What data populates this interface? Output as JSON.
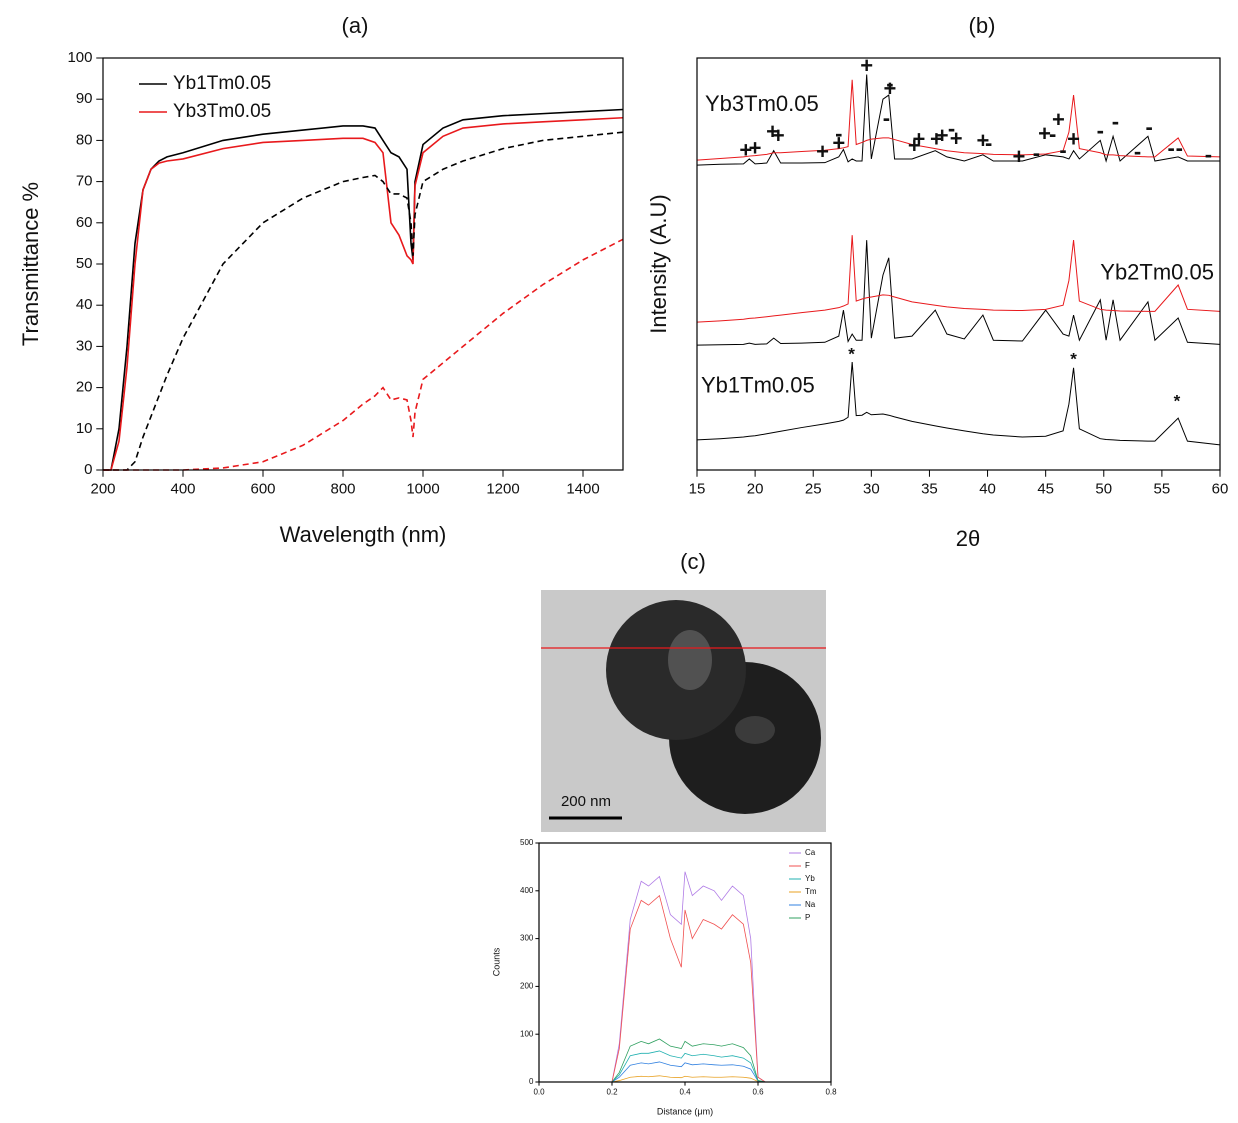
{
  "chart_data": [
    {
      "type": "line",
      "title": "(a)",
      "x_label": "Wavelength (nm)",
      "y_label": "Transmittance %",
      "x": [
        200,
        220,
        240,
        260,
        280,
        300,
        320,
        340,
        360,
        400,
        500,
        600,
        700,
        800,
        850,
        880,
        900,
        920,
        940,
        960,
        970,
        975,
        980,
        1000,
        1050,
        1100,
        1200,
        1300,
        1400,
        1500
      ],
      "xlim": [
        200,
        1500
      ],
      "xticks": [
        200,
        400,
        600,
        800,
        1000,
        1200,
        1400
      ],
      "ylim": [
        0,
        100
      ],
      "yticks": [
        0,
        10,
        20,
        30,
        40,
        50,
        60,
        70,
        80,
        90,
        100
      ],
      "legend": "upper left",
      "series": [
        {
          "name": "Yb1Tm0.05",
          "color": "#000000",
          "values": [
            0,
            0,
            10,
            30,
            55,
            68,
            73,
            75,
            76,
            77,
            80,
            81.5,
            82.5,
            83.5,
            83.5,
            83,
            80,
            77,
            76,
            73,
            55,
            51,
            70,
            79,
            83,
            85,
            86,
            86.5,
            87,
            87.5
          ]
        },
        {
          "name": "Yb3Tm0.05",
          "color": "#e8191c",
          "values": [
            0,
            0,
            7,
            25,
            50,
            68,
            73,
            74.5,
            75,
            75.5,
            78,
            79.5,
            80,
            80.5,
            80.5,
            79.5,
            77,
            60,
            57,
            52,
            51,
            50,
            69,
            77,
            81,
            83,
            84,
            84.5,
            85,
            85.5
          ]
        },
        {
          "color": "#000000",
          "dash": true,
          "values": [
            0,
            0,
            0,
            0,
            2,
            8,
            13,
            18,
            23,
            32,
            50,
            60,
            66,
            70,
            71,
            71.5,
            70,
            67,
            67,
            66,
            60,
            52,
            62,
            70,
            73,
            75,
            78,
            80,
            81,
            82
          ]
        },
        {
          "color": "#e8191c",
          "dash": true,
          "values": [
            0,
            0,
            0,
            0,
            0,
            0,
            0,
            0,
            0,
            0,
            0.5,
            2,
            6,
            12,
            16,
            18,
            20,
            17,
            17.5,
            17,
            12,
            8,
            14,
            22,
            26,
            30,
            38,
            45,
            51,
            56
          ]
        }
      ]
    },
    {
      "type": "line",
      "title": "(b)",
      "x_label": "2θ",
      "y_label": "Intensity (A.U)",
      "x": [
        15,
        17,
        19,
        19.5,
        20,
        21,
        21.6,
        22.2,
        24,
        26,
        27.2,
        27.6,
        28.0,
        28.35,
        28.7,
        29.2,
        29.6,
        30.0,
        31.0,
        31.5,
        32.0,
        33.5,
        35.5,
        36.5,
        38,
        39.6,
        40.5,
        43,
        45,
        46.5,
        47.0,
        47.4,
        47.9,
        49.7,
        50.2,
        50.8,
        51.4,
        53.8,
        54.4,
        56.4,
        57.2,
        60
      ],
      "xlim": [
        15,
        60
      ],
      "xticks": [
        15,
        20,
        25,
        30,
        35,
        40,
        45,
        50,
        55,
        60
      ],
      "ylim": [
        0,
        100
      ],
      "groups": [
        {
          "name": "Yb3Tm0.05",
          "series": [
            {
              "color": "#000000",
              "values": [
                74,
                74.2,
                74.3,
                75.5,
                74.3,
                74.5,
                77.5,
                74.5,
                74.5,
                74.6,
                76,
                77.8,
                74.8,
                75.5,
                75,
                75,
                96,
                75.5,
                90,
                91,
                75.5,
                75.5,
                77.5,
                76,
                75,
                76.5,
                75,
                75,
                76.5,
                76,
                75.5,
                77.5,
                75.5,
                80,
                75,
                81,
                75,
                81,
                75,
                76,
                75,
                75
              ]
            },
            {
              "color": "#e8191c",
              "values": [
                75.2,
                75.6,
                76,
                76.2,
                76.3,
                76.6,
                77,
                77,
                77.3,
                77.6,
                78,
                78.2,
                78.5,
                94.7,
                79,
                79.5,
                80,
                80.3,
                80.6,
                80.6,
                80.2,
                79,
                78,
                77.5,
                77,
                76.8,
                76.6,
                76.5,
                76.7,
                77.5,
                82,
                91,
                78,
                77,
                76.5,
                76.5,
                76.3,
                76,
                76,
                80.6,
                76.2,
                76
              ]
            }
          ]
        },
        {
          "name": "Yb2Tm0.05",
          "series": [
            {
              "color": "#000000",
              "values": [
                30.3,
                30.4,
                30.5,
                30.8,
                30.5,
                30.6,
                32,
                30.7,
                30.8,
                31,
                32.5,
                38.8,
                31.2,
                33,
                31.5,
                31.5,
                55.8,
                32,
                47.3,
                51.5,
                32,
                32.5,
                38.8,
                33,
                31.8,
                37.6,
                31.5,
                31.3,
                38.8,
                33,
                32.5,
                37.6,
                31.5,
                41.3,
                31.5,
                41.3,
                31.5,
                40.8,
                31.5,
                36.9,
                31,
                30.5
              ]
            },
            {
              "color": "#e8191c",
              "values": [
                35.9,
                36.2,
                36.6,
                36.8,
                36.9,
                37.2,
                37.4,
                37.6,
                38.2,
                38.8,
                39.4,
                39.8,
                40.3,
                57,
                41,
                41.5,
                41.8,
                42,
                42.5,
                42.4,
                42,
                40.8,
                40,
                39.6,
                39.2,
                39,
                38.8,
                38.7,
                39,
                40,
                46,
                55.8,
                41,
                39,
                38.8,
                38.7,
                38.6,
                38.5,
                38.5,
                44.9,
                39,
                38.5
              ]
            }
          ]
        },
        {
          "name": "Yb1Tm0.05",
          "series": [
            {
              "color": "#000000",
              "values": [
                7.3,
                7.6,
                8,
                8.2,
                8.3,
                8.8,
                9.1,
                9.4,
                10.3,
                11.2,
                11.8,
                12.1,
                12.8,
                26.2,
                13.2,
                13.3,
                14,
                13.4,
                13.6,
                13.3,
                12.9,
                11.8,
                10.7,
                10.2,
                9.5,
                8.8,
                8.5,
                8,
                8.2,
                9.5,
                16,
                24.8,
                10,
                7.6,
                7.4,
                7.3,
                7.2,
                7,
                7,
                12.6,
                7,
                6.1
              ]
            }
          ]
        }
      ],
      "annotations": [
        {
          "label": "+",
          "x": 19.2,
          "y": 77.2
        },
        {
          "label": "+",
          "x": 20.0,
          "y": 77.7
        },
        {
          "label": "+",
          "x": 21.5,
          "y": 81.8
        },
        {
          "label": "+",
          "x": 22.0,
          "y": 80.8
        },
        {
          "label": "+",
          "x": 25.8,
          "y": 76.9
        },
        {
          "label": "+",
          "x": 27.2,
          "y": 78.9
        },
        {
          "label": "-",
          "x": 27.2,
          "y": 81.3
        },
        {
          "label": "+",
          "x": 29.6,
          "y": 97.8
        },
        {
          "label": "-",
          "x": 31.3,
          "y": 85
        },
        {
          "label": "+",
          "x": 31.6,
          "y": 92.2
        },
        {
          "label": "-",
          "x": 31.6,
          "y": 93.4
        },
        {
          "label": "+",
          "x": 33.7,
          "y": 78.4
        },
        {
          "label": "+",
          "x": 34.1,
          "y": 79.9
        },
        {
          "label": "+",
          "x": 35.6,
          "y": 79.9
        },
        {
          "label": "+",
          "x": 36.1,
          "y": 80.8
        },
        {
          "label": "-",
          "x": 36.9,
          "y": 82.5
        },
        {
          "label": "+",
          "x": 37.3,
          "y": 80.1
        },
        {
          "label": "+",
          "x": 39.6,
          "y": 79.6
        },
        {
          "label": "-",
          "x": 40.1,
          "y": 78.9
        },
        {
          "label": "+",
          "x": 42.7,
          "y": 75.7
        },
        {
          "label": "-",
          "x": 44.2,
          "y": 76.5
        },
        {
          "label": "+",
          "x": 44.9,
          "y": 81.3
        },
        {
          "label": "-",
          "x": 45.6,
          "y": 81.1
        },
        {
          "label": "+",
          "x": 46.1,
          "y": 84.7
        },
        {
          "label": "-",
          "x": 46.5,
          "y": 77.2
        },
        {
          "label": "+",
          "x": 47.4,
          "y": 79.9
        },
        {
          "label": "-",
          "x": 49.7,
          "y": 82
        },
        {
          "label": "-",
          "x": 51.0,
          "y": 84.2
        },
        {
          "label": "-",
          "x": 52.9,
          "y": 76.9
        },
        {
          "label": "-",
          "x": 53.9,
          "y": 82.8
        },
        {
          "label": "-",
          "x": 55.8,
          "y": 77.7
        },
        {
          "label": "-",
          "x": 56.5,
          "y": 77.7
        },
        {
          "label": "-",
          "x": 59.0,
          "y": 76.2
        },
        {
          "label": "*",
          "x": 28.3,
          "y": 27.9
        },
        {
          "label": "*",
          "x": 47.4,
          "y": 26.7
        },
        {
          "label": "*",
          "x": 56.3,
          "y": 16.5
        }
      ]
    },
    {
      "type": "line",
      "title": "(c)",
      "scale_bar": "200 nm",
      "x_label": "Distance (μm)",
      "y_label": "Counts",
      "x": [
        0,
        0.1,
        0.2,
        0.22,
        0.25,
        0.28,
        0.3,
        0.33,
        0.36,
        0.39,
        0.4,
        0.42,
        0.45,
        0.48,
        0.5,
        0.53,
        0.56,
        0.58,
        0.6,
        0.62,
        0.7,
        0.8
      ],
      "xlim": [
        0,
        0.8
      ],
      "xticks": [
        {
          "value": 0,
          "label": "0.0"
        },
        0.2,
        0.4,
        0.6,
        0.8
      ],
      "ylim": [
        0,
        500
      ],
      "yticks": [
        0,
        100,
        200,
        300,
        400,
        500
      ],
      "legend": "upper right",
      "series": [
        {
          "name": "Ca",
          "color": "#b07ce6",
          "values": [
            0,
            0,
            0,
            80,
            340,
            420,
            410,
            430,
            350,
            330,
            440,
            390,
            410,
            400,
            380,
            410,
            390,
            300,
            10,
            0,
            0,
            0
          ]
        },
        {
          "name": "F",
          "color": "#f05050",
          "values": [
            0,
            0,
            0,
            70,
            320,
            380,
            370,
            390,
            300,
            240,
            360,
            300,
            340,
            330,
            320,
            350,
            330,
            250,
            10,
            0,
            0,
            0
          ]
        },
        {
          "name": "Yb",
          "color": "#20b0b0",
          "values": [
            0,
            0,
            0,
            15,
            55,
            60,
            60,
            65,
            55,
            50,
            60,
            55,
            58,
            55,
            52,
            55,
            50,
            40,
            3,
            0,
            0,
            0
          ]
        },
        {
          "name": "Tm",
          "color": "#e8a020",
          "values": [
            0,
            0,
            0,
            3,
            10,
            12,
            11,
            13,
            10,
            9,
            12,
            10,
            11,
            10,
            10,
            11,
            10,
            8,
            1,
            0,
            0,
            0
          ]
        },
        {
          "name": "Na",
          "color": "#3080e0",
          "values": [
            0,
            0,
            0,
            10,
            35,
            40,
            38,
            42,
            35,
            32,
            40,
            36,
            38,
            36,
            35,
            36,
            33,
            27,
            2,
            0,
            0,
            0
          ]
        },
        {
          "name": "P",
          "color": "#30a060",
          "values": [
            0,
            0,
            0,
            20,
            75,
            85,
            80,
            90,
            75,
            70,
            85,
            75,
            80,
            78,
            75,
            80,
            72,
            55,
            3,
            0,
            0,
            0
          ]
        }
      ]
    }
  ]
}
